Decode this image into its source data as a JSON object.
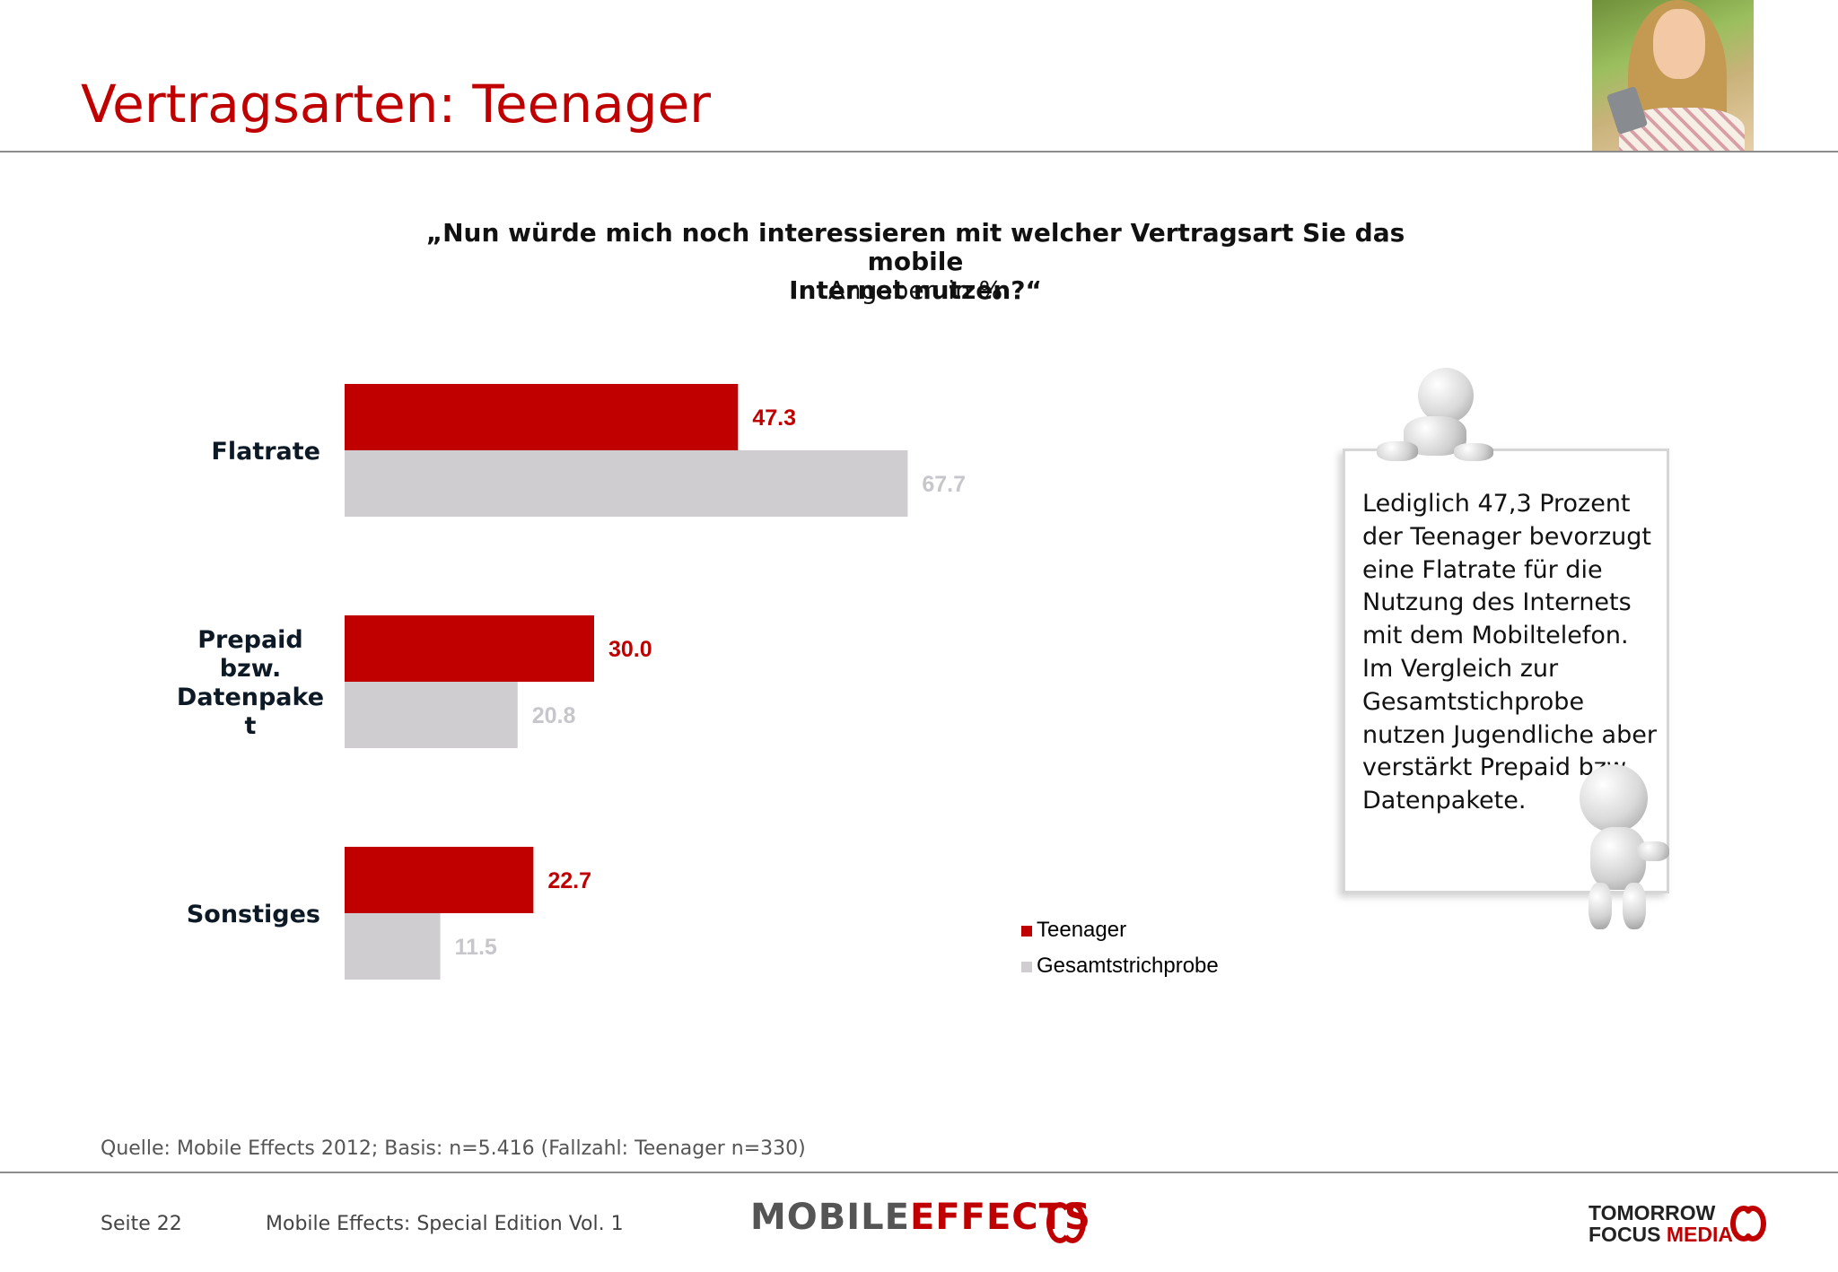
{
  "header": {
    "title": "Vertragsarten: Teenager"
  },
  "chart_data": {
    "type": "bar",
    "orientation": "horizontal",
    "title": "„Nun würde mich noch interessieren mit welcher Vertragsart Sie das mobile Internet nutzen?“",
    "title_line1": "„Nun würde mich noch interessieren mit welcher Vertragsart Sie das mobile",
    "title_line2": "Internet nutzen?“",
    "subtitle": "Angaben in %",
    "categories": [
      [
        "Flatrate"
      ],
      [
        "Prepaid",
        "bzw.",
        "Datenpake",
        "t"
      ],
      [
        "Sonstiges"
      ]
    ],
    "series": [
      {
        "name": "Teenager",
        "color": "#c00000",
        "values": [
          47.3,
          30.0,
          22.7
        ],
        "labels": [
          "47.3",
          "30.0",
          "22.7"
        ]
      },
      {
        "name": "Gesamtstrichprobe",
        "color": "#cfcdd0",
        "values": [
          67.7,
          20.8,
          11.5
        ],
        "labels": [
          "67.7",
          "20.8",
          "11.5"
        ]
      }
    ],
    "xlim": [
      0,
      100
    ],
    "grid": false,
    "legend": "bottom-right"
  },
  "note": {
    "text": "Lediglich 47,3 Prozent der Teenager bevorzugt eine Flatrate für die Nutzung des Internets mit dem Mobiltelefon. Im Vergleich zur Gesamtstichprobe nutzen Jugendliche aber verstärkt Prepaid bzw. Datenpakete."
  },
  "footer": {
    "source": "Quelle: Mobile Effects 2012; Basis: n=5.416 (Fallzahl: Teenager n=330)",
    "page": "Seite 22",
    "edition": "Mobile Effects: Special Edition Vol. 1",
    "logo_left_word1": "MOBILE",
    "logo_left_word2": "EFFECTS",
    "logo_right_line1": "TOMORROW",
    "logo_right_line2a": "FOCUS",
    "logo_right_line2b": "MEDIA"
  }
}
